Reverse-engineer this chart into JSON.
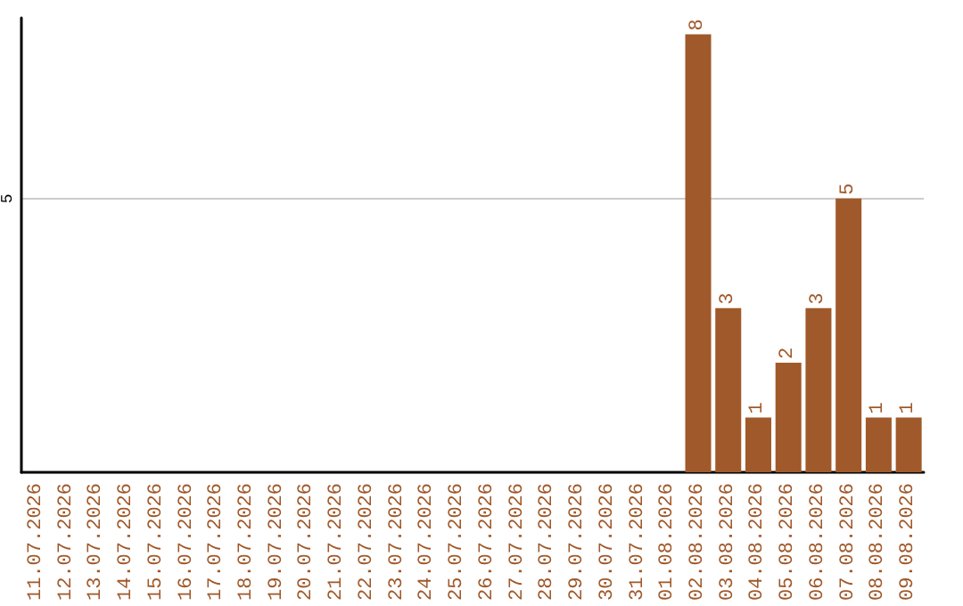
{
  "chart_data": {
    "type": "bar",
    "categories": [
      "11.07.2026",
      "12.07.2026",
      "13.07.2026",
      "14.07.2026",
      "15.07.2026",
      "16.07.2026",
      "17.07.2026",
      "18.07.2026",
      "19.07.2026",
      "20.07.2026",
      "21.07.2026",
      "22.07.2026",
      "23.07.2026",
      "24.07.2026",
      "25.07.2026",
      "26.07.2026",
      "27.07.2026",
      "28.07.2026",
      "29.07.2026",
      "30.07.2026",
      "31.07.2026",
      "01.08.2026",
      "02.08.2026",
      "03.08.2026",
      "04.08.2026",
      "05.08.2026",
      "06.08.2026",
      "07.08.2026",
      "08.08.2026",
      "09.08.2026"
    ],
    "values": [
      null,
      null,
      null,
      null,
      null,
      null,
      null,
      null,
      null,
      null,
      null,
      null,
      null,
      null,
      null,
      null,
      null,
      null,
      null,
      null,
      null,
      null,
      8,
      3,
      1,
      2,
      3,
      5,
      1,
      1
    ],
    "data_labels": true,
    "color": "#a0592a",
    "ylim": [
      0,
      8.3
    ],
    "yticks": [
      5
    ],
    "grid": "y"
  }
}
